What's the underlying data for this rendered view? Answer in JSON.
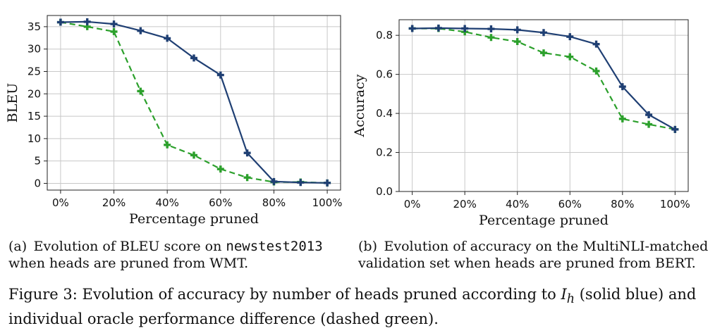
{
  "chart_data": [
    {
      "type": "line",
      "id": "a",
      "x": [
        0,
        10,
        20,
        30,
        40,
        50,
        60,
        70,
        80,
        90,
        100
      ],
      "xticks": [
        "0%",
        "20%",
        "40%",
        "60%",
        "80%",
        "100%"
      ],
      "xtick_values": [
        0,
        20,
        40,
        60,
        80,
        100
      ],
      "yticks": [
        "0",
        "5",
        "10",
        "15",
        "20",
        "25",
        "30",
        "35"
      ],
      "ytick_values": [
        0,
        5,
        10,
        15,
        20,
        25,
        30,
        35
      ],
      "ylim": [
        -1.5,
        37.5
      ],
      "xlim": [
        -5,
        105
      ],
      "xlabel": "Percentage pruned",
      "ylabel": "BLEU",
      "grid": true,
      "series": [
        {
          "name": "I_h (solid blue)",
          "color": "#1f3f73",
          "style": "solid",
          "marker": "plus",
          "values": [
            36.0,
            36.1,
            35.6,
            34.1,
            32.4,
            28.0,
            24.2,
            6.8,
            0.4,
            0.2,
            0.1
          ]
        },
        {
          "name": "oracle (dashed green)",
          "color": "#2ca02c",
          "style": "dashed",
          "marker": "plus",
          "values": [
            36.0,
            35.0,
            33.9,
            20.6,
            8.6,
            6.3,
            3.2,
            1.3,
            0.3,
            0.3,
            0.1
          ]
        }
      ]
    },
    {
      "type": "line",
      "id": "b",
      "x": [
        0,
        10,
        20,
        30,
        40,
        50,
        60,
        70,
        80,
        90,
        100
      ],
      "xticks": [
        "0%",
        "20%",
        "40%",
        "60%",
        "80%",
        "100%"
      ],
      "xtick_values": [
        0,
        20,
        40,
        60,
        80,
        100
      ],
      "yticks": [
        "0.0",
        "0.2",
        "0.4",
        "0.6",
        "0.8"
      ],
      "ytick_values": [
        0.0,
        0.2,
        0.4,
        0.6,
        0.8
      ],
      "ylim": [
        0.0,
        0.88
      ],
      "xlim": [
        -5,
        105
      ],
      "xlabel": "Percentage pruned",
      "ylabel": "Accuracy",
      "grid": true,
      "series": [
        {
          "name": "I_h (solid blue)",
          "color": "#1f3f73",
          "style": "solid",
          "marker": "plus",
          "values": [
            0.835,
            0.837,
            0.835,
            0.833,
            0.828,
            0.814,
            0.793,
            0.755,
            0.537,
            0.393,
            0.318
          ]
        },
        {
          "name": "oracle (dashed green)",
          "color": "#2ca02c",
          "style": "dashed",
          "marker": "plus",
          "values": [
            0.835,
            0.835,
            0.818,
            0.789,
            0.768,
            0.71,
            0.69,
            0.617,
            0.372,
            0.344,
            0.318
          ]
        }
      ]
    }
  ],
  "captions": {
    "a_prefix": "(a) Evolution of BLEU score on",
    "a_dataset": "newstest2013",
    "a_suffix": "when heads are pruned from WMT.",
    "b_text": "(b) Evolution of accuracy on the MultiNLI-matched validation set when heads are pruned from BERT.",
    "figure_prefix": "Figure 3: Evolution of accuracy by number of heads pruned according to",
    "figure_math_base": "I",
    "figure_math_sub": "h",
    "figure_suffix": "(solid blue) and individual oracle performance difference (dashed green)."
  }
}
